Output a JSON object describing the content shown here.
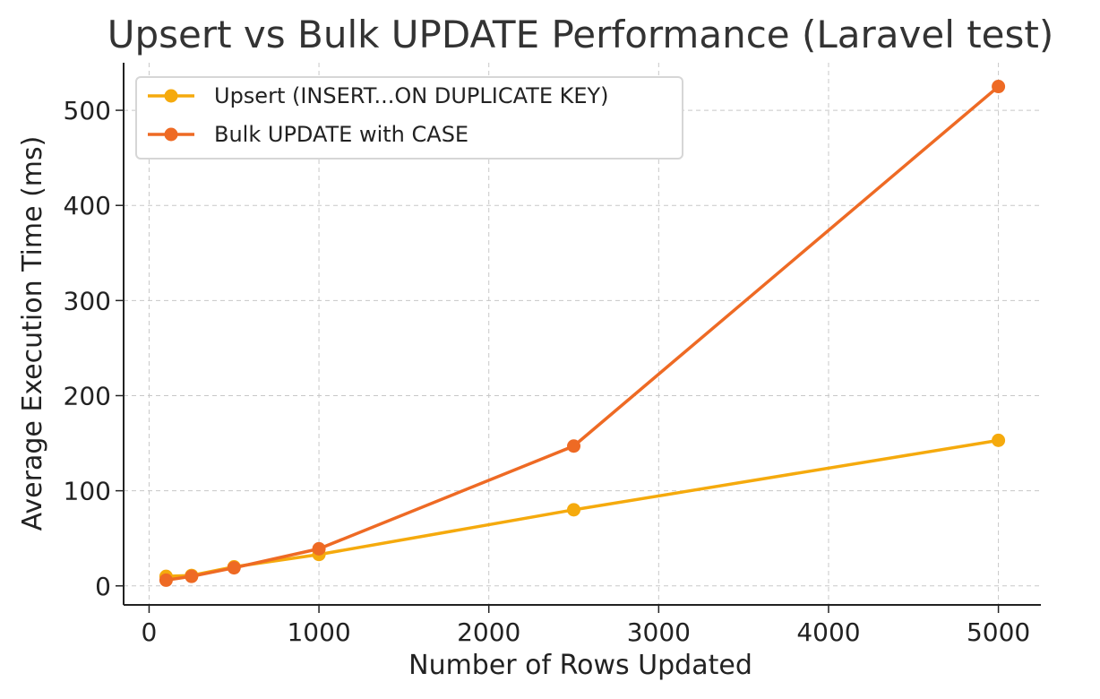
{
  "chart_data": {
    "type": "line",
    "title": "Upsert vs Bulk UPDATE Performance (Laravel test)",
    "xlabel": "Number of Rows Updated",
    "ylabel": "Average Execution Time (ms)",
    "xlim": [
      -150,
      5250
    ],
    "ylim": [
      -20,
      550
    ],
    "x_ticks": [
      0,
      1000,
      2000,
      3000,
      4000,
      5000
    ],
    "y_ticks": [
      0,
      100,
      200,
      300,
      400,
      500
    ],
    "grid": true,
    "legend_position": "top-left",
    "x": [
      100,
      250,
      500,
      1000,
      2500,
      5000
    ],
    "series": [
      {
        "name": "Upsert (INSERT...ON DUPLICATE KEY)",
        "color": "#f5aa0d",
        "values": [
          10,
          11,
          20,
          33,
          80,
          153
        ]
      },
      {
        "name": "Bulk UPDATE with CASE",
        "color": "#ee6a24",
        "values": [
          6,
          10,
          19,
          39,
          147,
          525
        ]
      }
    ]
  }
}
